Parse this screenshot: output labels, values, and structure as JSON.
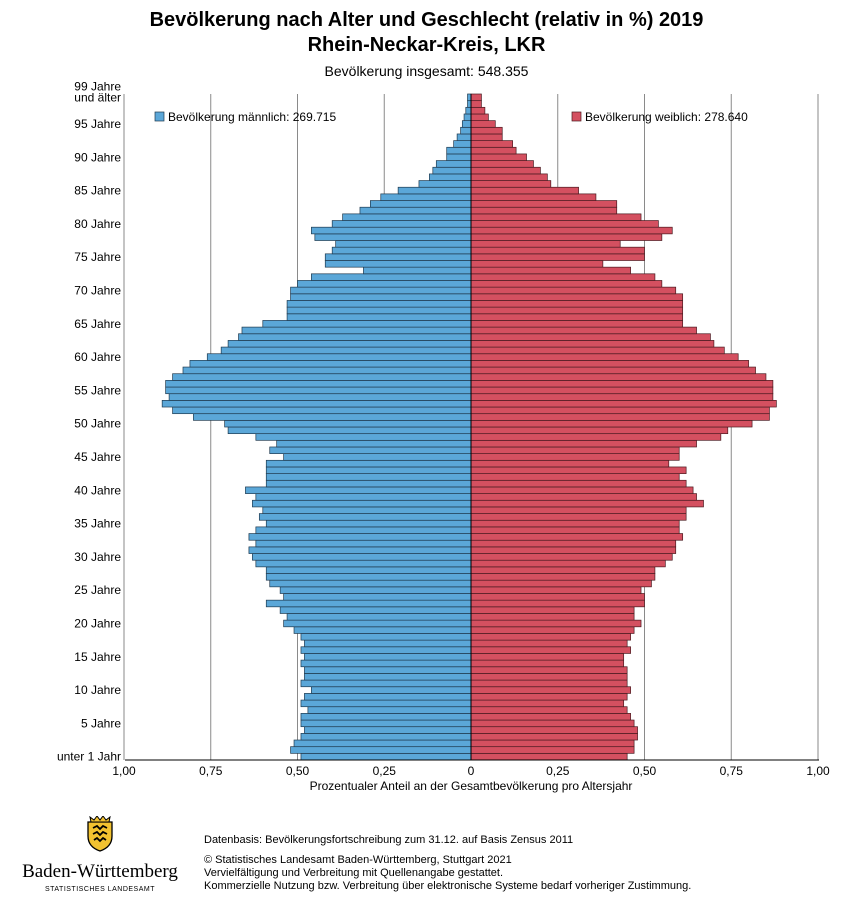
{
  "title_line1": "Bevölkerung nach Alter und Geschlecht (relativ in %) 2019",
  "title_line2": "Rhein-Neckar-Kreis, LKR",
  "subtitle": "Bevölkerung insgesamt: 548.355",
  "footer": {
    "source": "Datenbasis: Bevölkerungsfortschreibung zum 31.12. auf Basis Zensus 2011",
    "copyright": "© Statistisches Landesamt Baden-Württemberg, Stuttgart 2021",
    "line2": "Vervielfältigung und Verbreitung mit Quellenangabe gestattet.",
    "line3": "Kommerzielle Nutzung bzw. Verbreitung über elektronische Systeme bedarf vorheriger Zustimmung."
  },
  "logo": {
    "name": "Baden-Württemberg",
    "office": "STATISTISCHES LANDESAMT"
  },
  "chart_data": {
    "type": "bar",
    "orientation": "horizontal-population-pyramid",
    "xlabel": "Prozentualer Anteil an der Gesamtbevölkerung pro Altersjahr",
    "xlim": [
      -1.0,
      1.0
    ],
    "x_tick_labels": [
      "1,00",
      "0,75",
      "0,50",
      "0,25",
      "0",
      "0,25",
      "0,50",
      "0,75",
      "1,00"
    ],
    "y_tick_labels": [
      {
        "age": 0,
        "label": "unter 1 Jahr"
      },
      {
        "age": 5,
        "label": "5 Jahre"
      },
      {
        "age": 10,
        "label": "10 Jahre"
      },
      {
        "age": 15,
        "label": "15 Jahre"
      },
      {
        "age": 20,
        "label": "20 Jahre"
      },
      {
        "age": 25,
        "label": "25 Jahre"
      },
      {
        "age": 30,
        "label": "30 Jahre"
      },
      {
        "age": 35,
        "label": "35 Jahre"
      },
      {
        "age": 40,
        "label": "40 Jahre"
      },
      {
        "age": 45,
        "label": "45 Jahre"
      },
      {
        "age": 50,
        "label": "50 Jahre"
      },
      {
        "age": 55,
        "label": "55 Jahre"
      },
      {
        "age": 60,
        "label": "60 Jahre"
      },
      {
        "age": 65,
        "label": "65 Jahre"
      },
      {
        "age": 70,
        "label": "70 Jahre"
      },
      {
        "age": 75,
        "label": "75 Jahre"
      },
      {
        "age": 80,
        "label": "80 Jahre"
      },
      {
        "age": 85,
        "label": "85 Jahre"
      },
      {
        "age": 90,
        "label": "90 Jahre"
      },
      {
        "age": 95,
        "label": "95 Jahre"
      },
      {
        "age": 99,
        "label": "99 Jahre\nund älter"
      }
    ],
    "grid": true,
    "legend_position": "top",
    "ages": [
      0,
      1,
      2,
      3,
      4,
      5,
      6,
      7,
      8,
      9,
      10,
      11,
      12,
      13,
      14,
      15,
      16,
      17,
      18,
      19,
      20,
      21,
      22,
      23,
      24,
      25,
      26,
      27,
      28,
      29,
      30,
      31,
      32,
      33,
      34,
      35,
      36,
      37,
      38,
      39,
      40,
      41,
      42,
      43,
      44,
      45,
      46,
      47,
      48,
      49,
      50,
      51,
      52,
      53,
      54,
      55,
      56,
      57,
      58,
      59,
      60,
      61,
      62,
      63,
      64,
      65,
      66,
      67,
      68,
      69,
      70,
      71,
      72,
      73,
      74,
      75,
      76,
      77,
      78,
      79,
      80,
      81,
      82,
      83,
      84,
      85,
      86,
      87,
      88,
      89,
      90,
      91,
      92,
      93,
      94,
      95,
      96,
      97,
      98,
      99
    ],
    "series": [
      {
        "name": "Bevölkerung männlich: 269.715",
        "color": "#5ba7d8",
        "values": [
          0.49,
          0.52,
          0.51,
          0.49,
          0.48,
          0.49,
          0.49,
          0.47,
          0.49,
          0.48,
          0.46,
          0.49,
          0.48,
          0.48,
          0.49,
          0.48,
          0.49,
          0.48,
          0.49,
          0.51,
          0.54,
          0.53,
          0.55,
          0.59,
          0.54,
          0.55,
          0.58,
          0.59,
          0.59,
          0.62,
          0.63,
          0.64,
          0.62,
          0.64,
          0.62,
          0.59,
          0.61,
          0.6,
          0.63,
          0.62,
          0.65,
          0.59,
          0.59,
          0.59,
          0.59,
          0.54,
          0.58,
          0.56,
          0.62,
          0.7,
          0.71,
          0.8,
          0.86,
          0.89,
          0.87,
          0.88,
          0.88,
          0.86,
          0.83,
          0.81,
          0.76,
          0.72,
          0.7,
          0.67,
          0.66,
          0.6,
          0.53,
          0.53,
          0.53,
          0.52,
          0.52,
          0.5,
          0.46,
          0.31,
          0.42,
          0.42,
          0.4,
          0.39,
          0.45,
          0.46,
          0.4,
          0.37,
          0.32,
          0.29,
          0.26,
          0.21,
          0.15,
          0.12,
          0.11,
          0.1,
          0.07,
          0.07,
          0.05,
          0.04,
          0.03,
          0.025,
          0.02,
          0.015,
          0.01,
          0.01
        ]
      },
      {
        "name": "Bevölkerung weiblich: 278.640",
        "color": "#d45060",
        "values": [
          0.45,
          0.47,
          0.47,
          0.48,
          0.48,
          0.47,
          0.46,
          0.45,
          0.44,
          0.45,
          0.46,
          0.45,
          0.45,
          0.45,
          0.44,
          0.44,
          0.46,
          0.45,
          0.46,
          0.47,
          0.49,
          0.47,
          0.47,
          0.5,
          0.5,
          0.49,
          0.52,
          0.53,
          0.53,
          0.56,
          0.58,
          0.59,
          0.59,
          0.61,
          0.6,
          0.6,
          0.62,
          0.62,
          0.67,
          0.65,
          0.64,
          0.62,
          0.6,
          0.62,
          0.57,
          0.6,
          0.6,
          0.65,
          0.72,
          0.74,
          0.81,
          0.86,
          0.86,
          0.88,
          0.87,
          0.87,
          0.87,
          0.85,
          0.82,
          0.8,
          0.77,
          0.73,
          0.7,
          0.69,
          0.65,
          0.61,
          0.61,
          0.61,
          0.61,
          0.61,
          0.59,
          0.55,
          0.53,
          0.46,
          0.38,
          0.5,
          0.5,
          0.43,
          0.55,
          0.58,
          0.54,
          0.49,
          0.42,
          0.42,
          0.36,
          0.31,
          0.23,
          0.22,
          0.2,
          0.18,
          0.16,
          0.13,
          0.12,
          0.09,
          0.09,
          0.07,
          0.05,
          0.04,
          0.03,
          0.03
        ]
      }
    ]
  }
}
